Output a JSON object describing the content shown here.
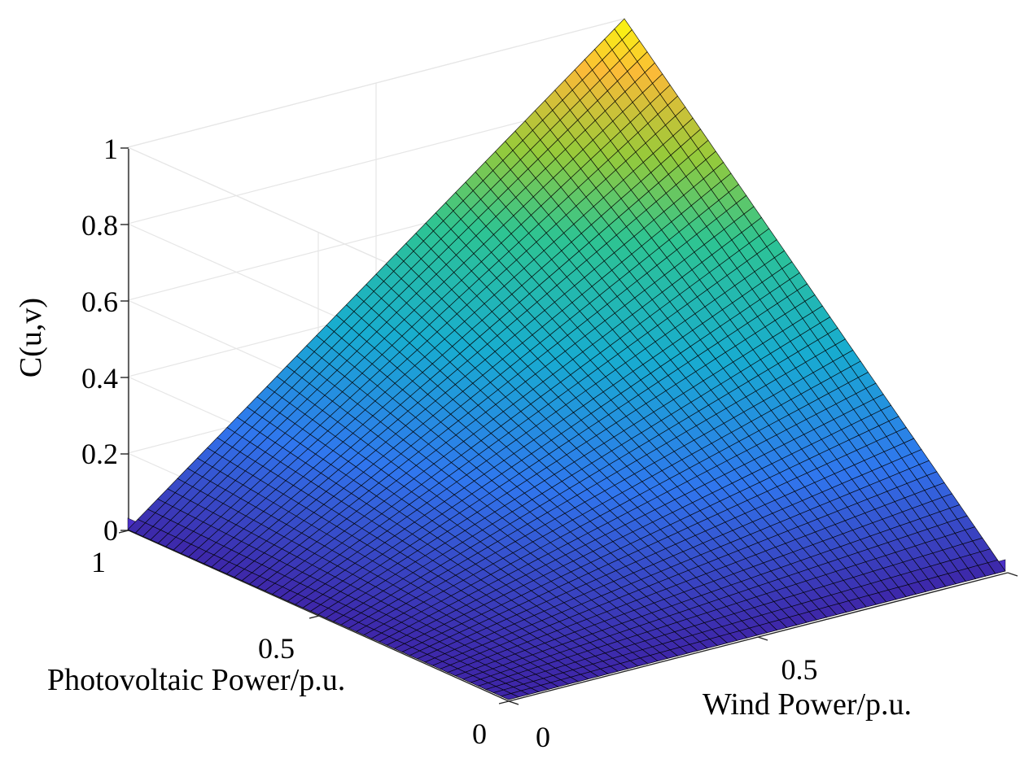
{
  "chart_data": {
    "type": "surface",
    "title": "",
    "xlabel": "Wind Power/p.u.",
    "ylabel": "Photovoltaic Power/p.u.",
    "zlabel": "C(u,v)",
    "xlim": [
      0,
      1
    ],
    "ylim": [
      0,
      1
    ],
    "zlim": [
      0,
      1
    ],
    "x_ticks": [
      "0",
      "0.5"
    ],
    "y_ticks": [
      "0",
      "0.5",
      "1"
    ],
    "z_ticks": [
      "0",
      "0.2",
      "0.4",
      "0.6",
      "0.8",
      "1"
    ],
    "grid": true,
    "colormap": "parula",
    "mesh_resolution": 50,
    "corner_values": [
      {
        "u": 0,
        "v": 0,
        "c": 0
      },
      {
        "u": 1,
        "v": 0,
        "c": 0
      },
      {
        "u": 0,
        "v": 1,
        "c": 0
      },
      {
        "u": 1,
        "v": 1,
        "c": 1
      }
    ],
    "edge_values": [
      {
        "u": 0.5,
        "v": 0,
        "c": 0
      },
      {
        "u": 0,
        "v": 0.5,
        "c": 0
      },
      {
        "u": 0.5,
        "v": 1,
        "c": 0.5
      },
      {
        "u": 1,
        "v": 0.5,
        "c": 0.5
      },
      {
        "u": 0.5,
        "v": 0.5,
        "c": 0.25
      }
    ],
    "surface_function": "C(u,v) = u*v"
  },
  "colors": {
    "background": "#ffffff",
    "grid": "#e6e6e6",
    "axis": "#262626",
    "mesh_edge": "#000000",
    "skirt": "#4b30c8"
  }
}
